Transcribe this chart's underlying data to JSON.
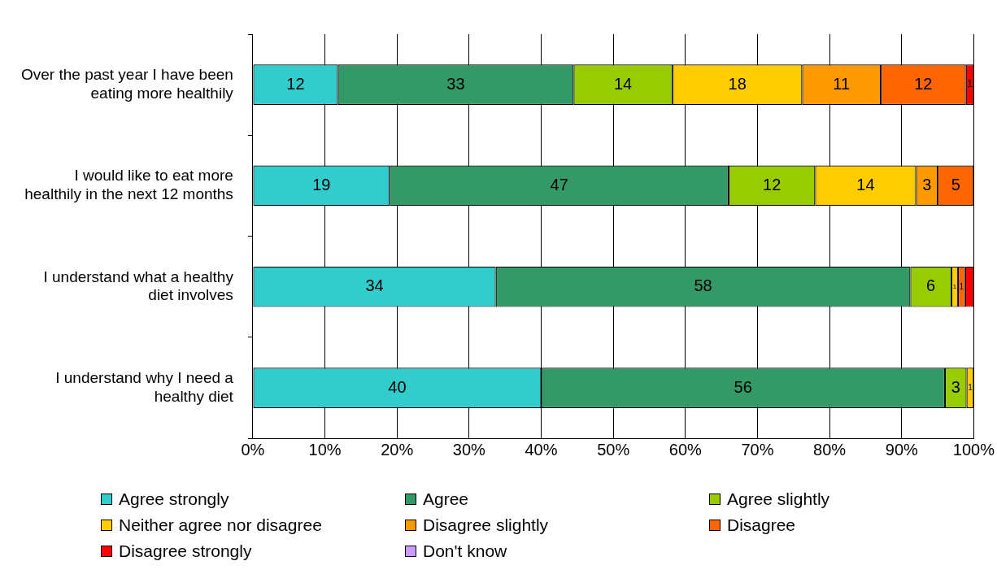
{
  "chart_data": {
    "type": "bar",
    "orientation": "horizontal",
    "stacked": true,
    "categories": [
      "Over the past year I have been eating more healthily",
      "I would like to eat more healthily in the next 12 months",
      "I understand what a healthy diet involves",
      "I understand why I need a healthy diet"
    ],
    "series": [
      {
        "name": "Agree strongly",
        "color": "#33cccc",
        "values": [
          11.8,
          19,
          33.7,
          40
        ],
        "value_labels": [
          "12",
          "19",
          "34",
          "40"
        ]
      },
      {
        "name": "Agree",
        "color": "#339966",
        "values": [
          32.7,
          47,
          57.5,
          56
        ],
        "value_labels": [
          "33",
          "47",
          "58",
          "56"
        ]
      },
      {
        "name": "Agree slightly",
        "color": "#99cc00",
        "values": [
          13.7,
          12,
          5.7,
          3
        ],
        "value_labels": [
          "14",
          "12",
          "6",
          "3"
        ]
      },
      {
        "name": "Neither agree nor disagree",
        "color": "#ffcc00",
        "values": [
          18.0,
          14,
          0.9,
          1
        ],
        "value_labels": [
          "18",
          "14",
          "1",
          "1"
        ]
      },
      {
        "name": "Disagree slightly",
        "color": "#ff9900",
        "values": [
          10.9,
          3,
          null,
          null
        ],
        "value_labels": [
          "11",
          "3",
          null,
          null
        ]
      },
      {
        "name": "Disagree",
        "color": "#ff6600",
        "values": [
          11.8,
          5,
          1.0,
          null
        ],
        "value_labels": [
          "12",
          "5",
          "1",
          null
        ]
      },
      {
        "name": "Disagree strongly",
        "color": "#ff0000",
        "values": [
          1.1,
          null,
          1.2,
          null
        ],
        "value_labels": [
          "1",
          null,
          null,
          null
        ]
      },
      {
        "name": "Don't know",
        "color": "#cc99ff",
        "values": [
          null,
          null,
          null,
          null
        ],
        "value_labels": [
          null,
          null,
          null,
          null
        ]
      }
    ],
    "xlim": [
      0,
      100
    ],
    "xticks": [
      {
        "value": 0,
        "label": "0%"
      },
      {
        "value": 10,
        "label": "10%"
      },
      {
        "value": 20,
        "label": "20%"
      },
      {
        "value": 30,
        "label": "30%"
      },
      {
        "value": 40,
        "label": "40%"
      },
      {
        "value": 50,
        "label": "50%"
      },
      {
        "value": 60,
        "label": "60%"
      },
      {
        "value": 70,
        "label": "70%"
      },
      {
        "value": 80,
        "label": "80%"
      },
      {
        "value": 90,
        "label": "90%"
      },
      {
        "value": 100,
        "label": "100%"
      }
    ],
    "grid": "x",
    "legend": "bottom"
  }
}
